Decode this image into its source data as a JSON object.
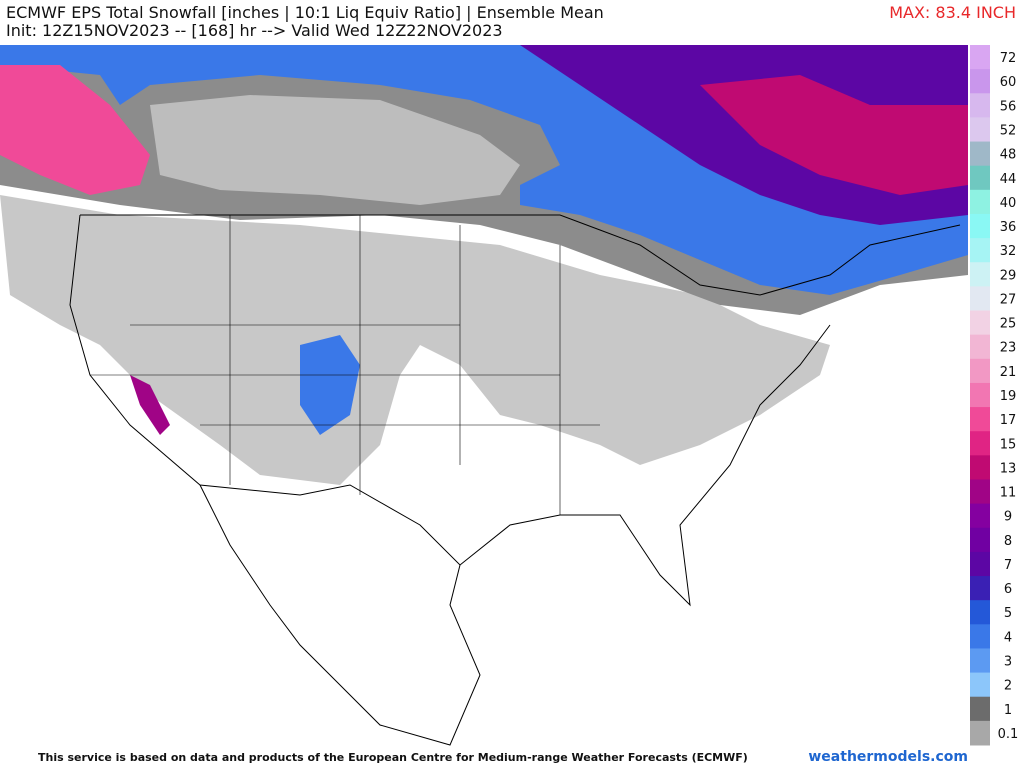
{
  "header": {
    "title": "ECMWF EPS Total Snowfall [inches | 10:1 Liq Equiv Ratio] | Ensemble Mean",
    "subtitle": "Init: 12Z15NOV2023 -- [168] hr --> Valid Wed 12Z22NOV2023",
    "max_label": "MAX: 83.4 INCH"
  },
  "legend": {
    "items": [
      {
        "label": "72",
        "color": "#d9a6f2"
      },
      {
        "label": "60",
        "color": "#c996ec"
      },
      {
        "label": "56",
        "color": "#d7b8ee"
      },
      {
        "label": "52",
        "color": "#dcc8ee"
      },
      {
        "label": "48",
        "color": "#9fb8c8"
      },
      {
        "label": "44",
        "color": "#6fc8c0"
      },
      {
        "label": "40",
        "color": "#8ef2e2"
      },
      {
        "label": "36",
        "color": "#8af8f4"
      },
      {
        "label": "32",
        "color": "#a6f4f4"
      },
      {
        "label": "29",
        "color": "#cdf2f4"
      },
      {
        "label": "27",
        "color": "#e2e8f2"
      },
      {
        "label": "25",
        "color": "#f2d2e4"
      },
      {
        "label": "23",
        "color": "#f2b6d4"
      },
      {
        "label": "21",
        "color": "#f298c4"
      },
      {
        "label": "19",
        "color": "#f276b2"
      },
      {
        "label": "17",
        "color": "#f04a98"
      },
      {
        "label": "15",
        "color": "#e02484"
      },
      {
        "label": "13",
        "color": "#c00a72"
      },
      {
        "label": "11",
        "color": "#a00486"
      },
      {
        "label": "9",
        "color": "#8400a0"
      },
      {
        "label": "8",
        "color": "#7000a2"
      },
      {
        "label": "7",
        "color": "#5c06a4"
      },
      {
        "label": "6",
        "color": "#3a20b4"
      },
      {
        "label": "5",
        "color": "#2458d8"
      },
      {
        "label": "4",
        "color": "#3a78e8"
      },
      {
        "label": "3",
        "color": "#5c9af2"
      },
      {
        "label": "2",
        "color": "#8cc6fa"
      },
      {
        "label": "1",
        "color": "#6c6c6c"
      },
      {
        "label": "0.1",
        "color": "#a8a8a8"
      }
    ]
  },
  "footer": {
    "note": "This service is based on data and products of the European Centre for Medium-range Weather Forecasts (ECMWF)",
    "site": "weathermodels.com"
  }
}
